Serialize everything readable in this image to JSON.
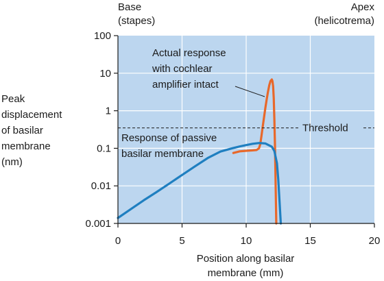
{
  "chart_data": {
    "type": "line",
    "title": "",
    "xlabel": [
      "Position along basilar",
      "membrane (mm)"
    ],
    "ylabel": [
      "Peak",
      "displacement",
      "of basilar",
      "membrane",
      "(nm)"
    ],
    "xlim": [
      0,
      20
    ],
    "ylim": [
      0.001,
      100
    ],
    "yscale": "log",
    "grid": true,
    "x_ticks": [
      0,
      5,
      10,
      15,
      20
    ],
    "x_tick_labels": [
      "0",
      "5",
      "10",
      "15",
      "20"
    ],
    "y_ticks": [
      0.001,
      0.01,
      0.1,
      1,
      10,
      100
    ],
    "y_tick_labels": [
      "0.001",
      "0.01",
      "0.1",
      "1",
      "10",
      "100"
    ],
    "corner_labels": {
      "left": [
        "Base",
        "(stapes)"
      ],
      "right": [
        "Apex",
        "(helicotrema)"
      ]
    },
    "threshold": {
      "y": 0.35,
      "label": "Threshold"
    },
    "annotations": {
      "active": [
        "Actual response",
        "with cochlear",
        "amplifier intact"
      ],
      "passive": [
        "Response of passive",
        "basilar membrane"
      ]
    },
    "series": [
      {
        "color": "#e8682a",
        "x": [
          9.0,
          9.5,
          10.0,
          10.5,
          10.8,
          11.0,
          11.1,
          11.2,
          11.3,
          11.4,
          11.5,
          11.6,
          11.7,
          11.8,
          11.9,
          12.0,
          12.05,
          12.1,
          12.15,
          12.2,
          12.25,
          12.3,
          12.35
        ],
        "y": [
          0.075,
          0.083,
          0.086,
          0.088,
          0.09,
          0.1,
          0.13,
          0.22,
          0.4,
          0.7,
          1.2,
          2.0,
          3.2,
          4.8,
          6.2,
          6.8,
          6.2,
          4.5,
          2.2,
          0.6,
          0.1,
          0.01,
          0.001
        ]
      },
      {
        "color": "#1f7fc0",
        "x": [
          0,
          1,
          2,
          3,
          4,
          5,
          6,
          7,
          8,
          9,
          9.5,
          10,
          10.5,
          11,
          11.5,
          12,
          12.2,
          12.4,
          12.5,
          12.6,
          12.7
        ],
        "y": [
          0.0014,
          0.0024,
          0.0041,
          0.0068,
          0.0115,
          0.0195,
          0.033,
          0.055,
          0.082,
          0.102,
          0.112,
          0.122,
          0.132,
          0.138,
          0.135,
          0.11,
          0.085,
          0.04,
          0.015,
          0.004,
          0.001
        ]
      }
    ]
  }
}
